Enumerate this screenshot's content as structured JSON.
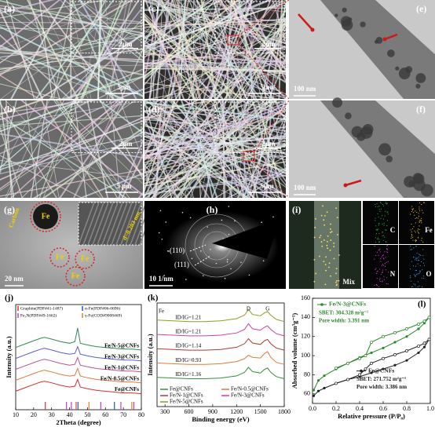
{
  "micrographs": {
    "a": {
      "label": "(a)",
      "inset_scale": "2μm",
      "scale": "5μm"
    },
    "b": {
      "label": "(b)",
      "inset_scale": "2μm",
      "scale": "5 μm"
    },
    "c": {
      "label": "(c)",
      "inset_scale": "2μm",
      "scale": "5μm"
    },
    "d": {
      "label": "(d)",
      "inset_scale": "2μm",
      "scale": "5μm"
    },
    "e": {
      "label": "(e)",
      "scale": "100 nm"
    },
    "f": {
      "label": "(f)",
      "scale": "100 nm"
    },
    "g": {
      "label": "(g)",
      "particles": [
        "Fe",
        "Fe",
        "Fe",
        "Fe"
      ],
      "carbon": "Carbon",
      "spacing": "d=0.203 nm",
      "scale": "20 nm"
    },
    "h": {
      "label": "(h)",
      "rings": [
        "(110)",
        "(111)"
      ],
      "scale": "10 1/nm"
    },
    "i": {
      "label": "(i)",
      "mix": "Mix",
      "elements": [
        "C",
        "Fe",
        "N",
        "O"
      ]
    }
  },
  "chart_data": [
    {
      "type": "line",
      "title": "(j)",
      "x_label": "2Theta (degree)",
      "y_label": "Intensity (a.u.)",
      "xlim": [
        10,
        80
      ],
      "xticks": [
        10,
        20,
        30,
        40,
        50,
        60,
        70,
        80
      ],
      "ylim": [
        -1.5,
        11
      ],
      "x": [
        10,
        15,
        20,
        24,
        26,
        30,
        35,
        40,
        43,
        44.5,
        46,
        50,
        55,
        60,
        65,
        70,
        75,
        80
      ],
      "series": [
        {
          "name": "Fe/N-5@CNFs",
          "color": "#2e8b57",
          "values": [
            5.9,
            6.3,
            6.7,
            7.0,
            7.1,
            6.9,
            6.6,
            6.4,
            6.6,
            8.2,
            6.4,
            6.2,
            6.0,
            5.9,
            5.8,
            5.7,
            5.7,
            5.6
          ]
        },
        {
          "name": "Fe/N-3@CNFs",
          "color": "#5b5bd6",
          "values": [
            4.6,
            5.0,
            5.4,
            5.7,
            5.8,
            5.6,
            5.3,
            5.1,
            5.2,
            6.0,
            5.1,
            4.9,
            4.7,
            4.6,
            4.5,
            4.4,
            4.4,
            4.3
          ]
        },
        {
          "name": "Fe/N-1@CNFs",
          "color": "#c0508f",
          "values": [
            3.3,
            3.7,
            4.1,
            4.4,
            4.5,
            4.3,
            4.0,
            3.8,
            3.9,
            4.7,
            3.8,
            3.6,
            3.4,
            3.3,
            3.2,
            3.1,
            3.1,
            3.0
          ]
        },
        {
          "name": "Fe/N-0.5@CNFs",
          "color": "#e07b39",
          "values": [
            2.0,
            2.4,
            2.8,
            3.1,
            3.2,
            3.0,
            2.7,
            2.5,
            2.6,
            3.4,
            2.5,
            2.3,
            2.1,
            2.0,
            1.9,
            1.8,
            1.8,
            1.7
          ]
        },
        {
          "name": "Fe@CNFs",
          "color": "#d93030",
          "values": [
            0.7,
            1.1,
            1.5,
            1.8,
            1.9,
            1.7,
            1.4,
            1.2,
            1.3,
            2.1,
            1.2,
            1.0,
            0.8,
            0.7,
            0.6,
            0.5,
            0.5,
            0.4
          ]
        }
      ],
      "references": [
        {
          "name": "Graphite(PDF#41-1487)",
          "color": "#e03030",
          "positions": [
            26.5
          ]
        },
        {
          "name": "α-Fe(PDF#06-0696)",
          "color": "#3050c0",
          "positions": [
            44.7,
            65.0
          ]
        },
        {
          "name": "Fe₃N(PDF#49-1662)",
          "color": "#c040c0",
          "positions": [
            38.3,
            41.0,
            43.7,
            57.4,
            68.6,
            75.8
          ]
        },
        {
          "name": "γ-Fe(COD#9008469)",
          "color": "#e08020",
          "positions": [
            43.6,
            50.8,
            74.7
          ]
        }
      ]
    },
    {
      "type": "line",
      "title": "(k)",
      "x_label": "Binding energy (eV)",
      "y_label": "Intensity (a.u.)",
      "xlim": [
        200,
        1800
      ],
      "xticks": [
        300,
        600,
        900,
        1200,
        1500,
        1800
      ],
      "ylim": [
        -3.5,
        11
      ],
      "x": [
        200,
        400,
        600,
        800,
        1000,
        1200,
        1300,
        1350,
        1400,
        1500,
        1550,
        1590,
        1630,
        1700,
        1800
      ],
      "annotations": [
        "Fe",
        "D",
        "G"
      ],
      "series": [
        {
          "name": "Fe@CNFs",
          "color": "#3a8f3a",
          "annotation": "ID/IG=1.16",
          "values": [
            0.6,
            0.5,
            0.4,
            0.4,
            0.5,
            0.8,
            1.3,
            2.0,
            1.4,
            1.2,
            1.7,
            1.9,
            1.3,
            0.7,
            0.4
          ]
        },
        {
          "name": "Fe/N-0.5@CNFs",
          "color": "#e07b39",
          "annotation": "ID/IG=0.93",
          "values": [
            2.6,
            2.5,
            2.4,
            2.4,
            2.5,
            2.8,
            3.2,
            3.7,
            3.4,
            3.3,
            3.9,
            4.2,
            3.4,
            2.7,
            2.4
          ]
        },
        {
          "name": "Fe/N-1@CNFs",
          "color": "#b03a3a",
          "annotation": "ID/IG=1.14",
          "values": [
            4.6,
            4.5,
            4.4,
            4.4,
            4.5,
            4.8,
            5.3,
            6.0,
            5.4,
            5.2,
            5.7,
            5.9,
            5.3,
            4.7,
            4.4
          ]
        },
        {
          "name": "Fe/N-3@CNFs",
          "color": "#d040a0",
          "annotation": "ID/IG=1.21",
          "values": [
            6.6,
            6.5,
            6.4,
            6.4,
            6.5,
            6.8,
            7.3,
            8.1,
            7.4,
            7.2,
            7.6,
            7.8,
            7.3,
            6.7,
            6.4
          ]
        },
        {
          "name": "Fe/N-5@CNFs",
          "color": "#8aa020",
          "annotation": "ID/IG=1.21",
          "values": [
            8.6,
            8.5,
            8.4,
            8.4,
            8.5,
            8.8,
            9.3,
            10.1,
            9.4,
            9.2,
            9.6,
            9.8,
            9.3,
            8.7,
            8.4
          ]
        }
      ]
    },
    {
      "type": "line",
      "title": "(l)",
      "x_label": "Relative pressure (P/P₀)",
      "y_label": "Absorbed volume (cm³g⁻¹)",
      "xlim": [
        0,
        1
      ],
      "xticks": [
        {
          "value": 0,
          "label": "0.0"
        },
        0.2,
        0.4,
        0.6,
        0.8,
        {
          "value": 1,
          "label": "1.0"
        }
      ],
      "ylim": [
        50,
        160
      ],
      "yticks": [
        60,
        80,
        100,
        120,
        140,
        160
      ],
      "annotations": [
        "SBET: 304.328 m²g⁻¹",
        "Pore width: 3.391 nm",
        "SBET: 271.752 m²g⁻¹",
        "Pore width: 3.386 nm"
      ],
      "series": [
        {
          "name": "Fe/N-3@CNFs",
          "color": "#2a8a2a",
          "x": [
            0.01,
            0.05,
            0.1,
            0.2,
            0.3,
            0.4,
            0.5,
            0.6,
            0.7,
            0.8,
            0.9,
            0.95,
            0.99
          ],
          "values": [
            64,
            74,
            79,
            86,
            92,
            98,
            103,
            108,
            114,
            120,
            128,
            134,
            140
          ],
          "desorption_x": [
            0.99,
            0.95,
            0.9,
            0.8,
            0.7,
            0.6,
            0.5,
            0.45,
            0.4,
            0.3,
            0.2
          ],
          "desorption": [
            140,
            136,
            133,
            128,
            124,
            120,
            114,
            100,
            97,
            92,
            87
          ]
        },
        {
          "name": "Fe@CNFs",
          "color": "#222222",
          "x": [
            0.01,
            0.05,
            0.1,
            0.2,
            0.3,
            0.4,
            0.5,
            0.6,
            0.7,
            0.8,
            0.9,
            0.95,
            0.99
          ],
          "values": [
            58,
            63,
            66,
            71,
            75,
            78,
            82,
            86,
            90,
            95,
            103,
            109,
            117
          ],
          "desorption_x": [
            0.99,
            0.95,
            0.9,
            0.8,
            0.7,
            0.6,
            0.5,
            0.45,
            0.4,
            0.3,
            0.2
          ],
          "desorption": [
            117,
            113,
            110,
            105,
            101,
            97,
            92,
            86,
            80,
            75,
            71
          ]
        }
      ]
    }
  ]
}
